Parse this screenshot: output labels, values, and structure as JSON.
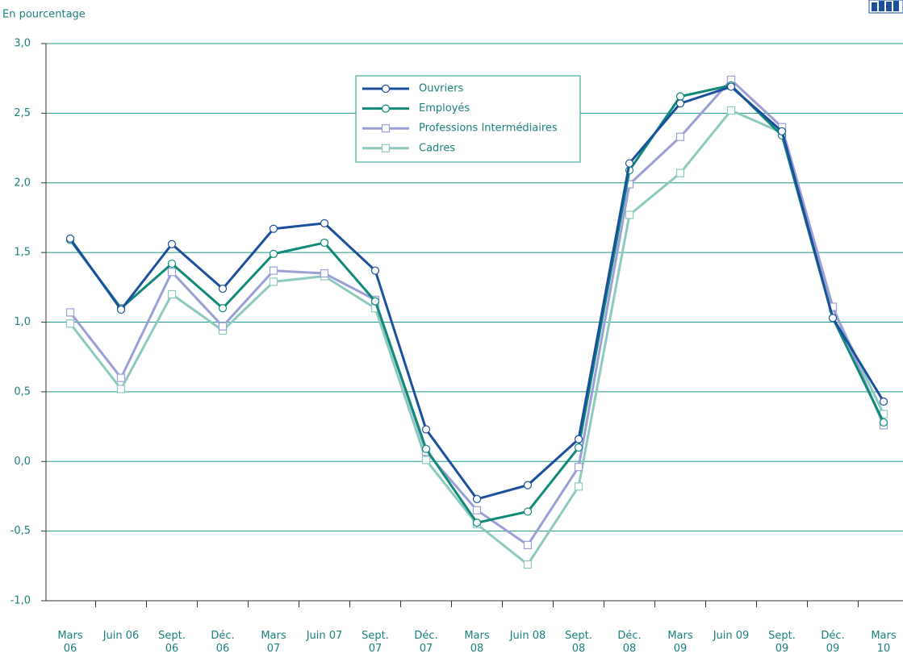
{
  "chart_data": {
    "type": "line",
    "y_axis_label": "En pourcentage",
    "categories": [
      "Mars 06",
      "Juin 06",
      "Sept. 06",
      "Déc. 06",
      "Mars 07",
      "Juin 07",
      "Sept. 07",
      "Déc. 07",
      "Mars 08",
      "Juin 08",
      "Sept. 08",
      "Déc. 08",
      "Mars 09",
      "Juin 09",
      "Sept. 09",
      "Déc. 09",
      "Mars 10"
    ],
    "series": [
      {
        "name": "Ouvriers",
        "color": "#1a4f9c",
        "marker": "circle",
        "values": [
          1.6,
          1.09,
          1.56,
          1.24,
          1.67,
          1.71,
          1.37,
          0.23,
          -0.27,
          -0.17,
          0.16,
          2.14,
          2.57,
          2.69,
          2.37,
          1.03,
          0.43
        ]
      },
      {
        "name": "Employés",
        "color": "#0f8a78",
        "marker": "circle",
        "values": [
          1.59,
          1.1,
          1.42,
          1.1,
          1.49,
          1.57,
          1.15,
          0.09,
          -0.44,
          -0.36,
          0.1,
          2.09,
          2.62,
          2.7,
          2.34,
          1.03,
          0.28
        ]
      },
      {
        "name": "Professions Intermédiaires",
        "color": "#9a9fd6",
        "marker": "square",
        "values": [
          1.07,
          0.6,
          1.36,
          0.97,
          1.37,
          1.35,
          1.16,
          0.07,
          -0.35,
          -0.6,
          -0.04,
          1.99,
          2.33,
          2.74,
          2.4,
          1.11,
          0.26
        ]
      },
      {
        "name": "Cadres",
        "color": "#8ccabf",
        "marker": "square",
        "values": [
          0.99,
          0.52,
          1.2,
          0.94,
          1.29,
          1.33,
          1.1,
          0.01,
          -0.45,
          -0.74,
          -0.18,
          1.77,
          2.07,
          2.52,
          2.36,
          1.1,
          0.34
        ]
      }
    ],
    "ylim": [
      -1.0,
      3.0
    ],
    "yticks": [
      {
        "value": -1.0,
        "label": "-1,0"
      },
      {
        "value": -0.5,
        "label": "-0,5"
      },
      {
        "value": 0.0,
        "label": "0,0"
      },
      {
        "value": 0.5,
        "label": "0,5"
      },
      {
        "value": 1.0,
        "label": "1,0"
      },
      {
        "value": 1.5,
        "label": "1,5"
      },
      {
        "value": 2.0,
        "label": "2,0"
      },
      {
        "value": 2.5,
        "label": "2,5"
      },
      {
        "value": 3.0,
        "label": "3,0"
      }
    ],
    "grid": true
  }
}
